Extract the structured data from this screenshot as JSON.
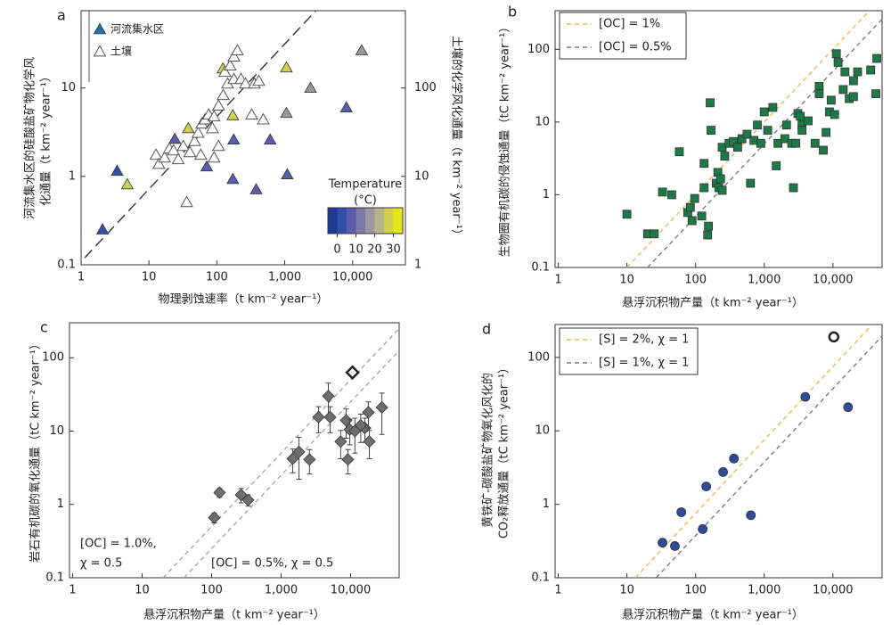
{
  "chart_data": [
    {
      "type": "scatter",
      "panel": "a",
      "log_scale": true,
      "y_label": [
        "河流集水区的硅酸盐矿物化学风",
        "化通量（t km⁻² year⁻¹）"
      ],
      "y2_label": "土壤的化学风化通量（t km⁻² year⁻¹）",
      "x_label": "物理剥蚀速率（t km⁻² year⁻¹）",
      "xlim": [
        1,
        60000
      ],
      "ylim": [
        0.1,
        75
      ],
      "y2lim": [
        1,
        750
      ],
      "xticks": [
        1,
        10,
        100,
        {
          "value": 1000,
          "label": "1,000"
        },
        {
          "value": 10000,
          "label": "10,000"
        }
      ],
      "yticks": [
        0.1,
        1,
        10
      ],
      "y2ticks": [
        1,
        10,
        100
      ],
      "legend": "top-left",
      "series": [
        {
          "name": "河流集水区",
          "marker": "triangle",
          "color": "#1f6fb2",
          "x": [
            2.07,
            4.8,
            3.4,
            24,
            38,
            123,
            172,
            71,
            177,
            172,
            380,
            610,
            1090,
            1060,
            1060,
            2400,
            8100,
            13600
          ],
          "y": [
            0.25,
            0.81,
            1.15,
            2.65,
            3.5,
            16.6,
            4.9,
            1.29,
            2.6,
            0.93,
            0.71,
            2.6,
            1.05,
            5.2,
            17,
            10,
            6,
            26.6
          ],
          "temperature": [
            2,
            27,
            3,
            5,
            27,
            28,
            27,
            6,
            5,
            5,
            6,
            5,
            5,
            18,
            28,
            17,
            5,
            17
          ]
        },
        {
          "name": "土壤",
          "marker": "triangle",
          "open": true,
          "axis": "y2",
          "x": [
            12.7,
            14,
            17,
            20,
            23,
            27,
            32,
            40,
            47,
            53,
            58,
            60,
            67,
            76,
            86,
            91,
            91,
            106,
            106,
            124,
            131,
            144,
            157,
            178,
            201,
            178,
            227,
            264,
            357,
            415,
            326,
            483,
            36
          ],
          "y": [
            17.5,
            13.8,
            16.3,
            20.6,
            19.6,
            15.6,
            22,
            18.7,
            25,
            31,
            17.5,
            39.5,
            44,
            50,
            35,
            47.5,
            16.3,
            63,
            22,
            83,
            152,
            112,
            179,
            226,
            266,
            126,
            126,
            112,
            112,
            120,
            50,
            44,
            5.1
          ]
        }
      ],
      "lines": [
        {
          "x": [
            1.13,
            2970
          ],
          "y": [
            0.12,
            77
          ],
          "color": "#333333",
          "dash": "12 6"
        }
      ],
      "colorbar": {
        "title": [
          "Temperature",
          "(°C)"
        ],
        "lim": [
          -5,
          35
        ],
        "ticks": [
          0,
          10,
          20,
          30
        ],
        "colors": [
          "#1f3a93",
          "#3350a8",
          "#5a5cb0",
          "#7b78a8",
          "#9b97a0",
          "#b5b48a",
          "#d0cf50",
          "#e8e41a"
        ]
      }
    },
    {
      "type": "scatter",
      "panel": "b",
      "log_scale": true,
      "y_label": [
        "生物圈有机碳的侵蚀通量（tC km⁻² year⁻¹）"
      ],
      "x_label": "悬浮沉积物产量（t km⁻² year⁻¹）",
      "xlim": [
        0.9,
        52000
      ],
      "ylim": [
        0.1,
        340
      ],
      "xticks": [
        1,
        10,
        100,
        {
          "value": 1000,
          "label": "1,000"
        },
        {
          "value": 10000,
          "label": "10,000"
        }
      ],
      "yticks": [
        0.1,
        1,
        10,
        100
      ],
      "legend": "top-left",
      "series": [
        {
          "marker": "square",
          "color": "#1d7a46",
          "x": [
            10,
            20,
            25,
            33,
            45,
            58,
            77,
            84,
            89,
            97,
            123,
            133,
            133,
            150,
            154,
            163,
            168,
            200,
            211,
            218,
            231,
            244,
            244,
            266,
            307,
            355,
            410,
            473,
            562,
            631,
            708,
            794,
            891,
            1000,
            1122,
            1334,
            1496,
            1585,
            1995,
            2113,
            2512,
            2661,
            2884,
            3090,
            3350,
            3548,
            3548,
            4365,
            5495,
            6310,
            6310,
            7244,
            7943,
            8913,
            9441,
            10590,
            11220,
            11890,
            14130,
            14960,
            17300,
            19950,
            22900,
            35500,
            43500,
            42200,
            19950
          ],
          "y": [
            0.54,
            0.29,
            0.29,
            1.09,
            1.0,
            3.9,
            0.57,
            0.67,
            0.44,
            0.89,
            0.51,
            2.7,
            1.25,
            0.28,
            0.37,
            18.4,
            7.7,
            1.44,
            2.03,
            1.25,
            1.66,
            1.15,
            4.5,
            3.4,
            5.1,
            5.4,
            4.5,
            5.9,
            6.8,
            1.44,
            5.6,
            9.1,
            5.1,
            13.8,
            7.7,
            15.9,
            2.5,
            5.1,
            5.9,
            9.1,
            5.1,
            1.25,
            5.1,
            13.1,
            12,
            9.1,
            7.7,
            10.4,
            5.1,
            31,
            24.5,
            4.1,
            7.2,
            13.8,
            20,
            12.7,
            87,
            66,
            28,
            49,
            21,
            37,
            49,
            52,
            75,
            24.5,
            22.4
          ]
        }
      ],
      "lines": [
        {
          "name": "[OC] = 1%",
          "x": [
            10,
            34000
          ],
          "y": [
            0.1,
            340
          ],
          "color": "#f0b74a",
          "dash": "5 4"
        },
        {
          "name": "[OC] = 0.5%",
          "x": [
            20,
            52000
          ],
          "y": [
            0.1,
            260
          ],
          "color": "#7a7a8a",
          "dash": "5 4"
        }
      ]
    },
    {
      "type": "scatter",
      "panel": "c",
      "log_scale": true,
      "y_label": [
        "岩石有机碳的氧化通量（tC km⁻² year⁻¹）"
      ],
      "x_label": "悬浮沉积物产量（t km⁻² year⁻¹）",
      "xlim": [
        0.9,
        50000
      ],
      "ylim": [
        0.1,
        300
      ],
      "xticks": [
        1,
        10,
        100,
        {
          "value": 1000,
          "label": "1,000"
        },
        {
          "value": 10000,
          "label": "10,000"
        }
      ],
      "yticks": [
        0.1,
        1,
        10,
        100
      ],
      "series": [
        {
          "marker": "diamond",
          "color": "#6e6e6e",
          "x": [
            109,
            130,
            265,
            335,
            1470,
            1810,
            2560,
            3450,
            4780,
            5070,
            7200,
            8630,
            9140,
            9730,
            11540,
            16030,
            18030,
            18600,
            28200,
            14000
          ],
          "y": [
            0.66,
            1.45,
            1.35,
            1.15,
            4.2,
            5.2,
            4.1,
            15.5,
            30,
            15.5,
            7.2,
            14,
            4.1,
            10.5,
            10,
            11,
            18,
            7.2,
            21,
            12
          ],
          "errors": [
            0.1,
            0.2,
            0.3,
            0.2,
            1.5,
            3,
            1.5,
            6,
            15,
            6,
            3,
            6,
            1.5,
            4,
            5,
            4,
            7,
            3,
            12,
            5
          ]
        },
        {
          "marker": "diamond",
          "open": true,
          "x": [
            10650
          ],
          "y": [
            63
          ]
        }
      ],
      "lines": [
        {
          "annotation": [
            "[OC] = 1.0%,",
            "χ = 0.5"
          ],
          "x": [
            20,
            50000
          ],
          "y": [
            0.1,
            250
          ],
          "color": "#a8a8a8",
          "dash": "5 4"
        },
        {
          "annotation": [
            "[OC] = 0.5%, χ = 0.5"
          ],
          "x": [
            40,
            50000
          ],
          "y": [
            0.1,
            125
          ],
          "color": "#a8a8a8",
          "dash": "5 4"
        }
      ]
    },
    {
      "type": "scatter",
      "panel": "d",
      "log_scale": true,
      "y_label": [
        "黄铁矿-碳酸盐矿物氧化风化的",
        "CO₂释放通量（tC km⁻² year⁻¹）"
      ],
      "x_label": "悬浮沉积物产量（t km⁻² year⁻¹）",
      "xlim": [
        0.9,
        52000
      ],
      "ylim": [
        0.1,
        280
      ],
      "xticks": [
        1,
        10,
        100,
        {
          "value": 1000,
          "label": "1,000"
        },
        {
          "value": 10000,
          "label": "10,000"
        }
      ],
      "yticks": [
        0.1,
        1,
        10,
        100
      ],
      "legend": "top-left",
      "series": [
        {
          "marker": "circle",
          "color": "#2f4b9b",
          "x": [
            33,
            50,
            62,
            127,
            143,
            252,
            362,
            638,
            3960,
            16600
          ],
          "y": [
            0.3,
            0.27,
            0.78,
            0.46,
            1.75,
            2.75,
            4.2,
            0.71,
            29,
            21
          ]
        },
        {
          "marker": "circle",
          "open": true,
          "x": [
            10300
          ],
          "y": [
            190
          ]
        }
      ],
      "lines": [
        {
          "name": "[S] = 2%, χ = 1",
          "x": [
            13.3,
            37300
          ],
          "y": [
            0.1,
            280
          ],
          "color": "#f0b74a",
          "dash": "5 4"
        },
        {
          "name": "[S] = 1%, χ = 1",
          "x": [
            26.7,
            52000
          ],
          "y": [
            0.1,
            195
          ],
          "color": "#7a7a8a",
          "dash": "5 4"
        }
      ]
    }
  ]
}
